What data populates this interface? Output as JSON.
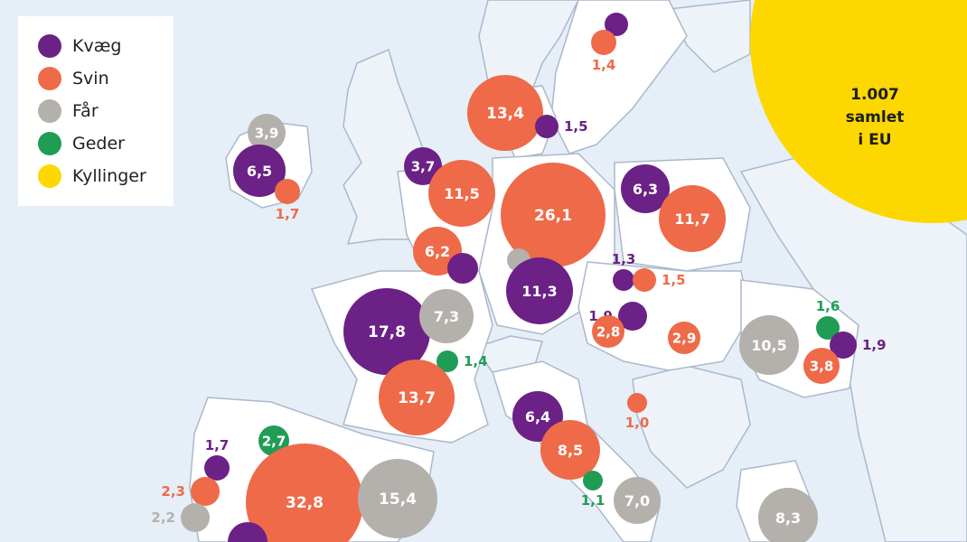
{
  "legend": {
    "items": [
      {
        "label": "Kvæg",
        "color": "#6b2185"
      },
      {
        "label": "Svin",
        "color": "#ee6a48"
      },
      {
        "label": "Får",
        "color": "#b4b0ab"
      },
      {
        "label": "Geder",
        "color": "#1f9d55"
      },
      {
        "label": "Kyllinger",
        "color": "#fdd700"
      }
    ]
  },
  "eu_total": {
    "lines": [
      "1.007",
      "samlet",
      "i EU"
    ],
    "color": "#fdd700"
  },
  "bubbles": [
    {
      "id": "sweden-kvaeg",
      "type": "kvaeg",
      "value": "",
      "label_pos": "none"
    },
    {
      "id": "sweden-svin",
      "type": "svin",
      "value": "1,4",
      "label_pos": "below"
    },
    {
      "id": "denmark-svin",
      "type": "svin",
      "value": "13,4",
      "label_pos": "inside"
    },
    {
      "id": "denmark-kvaeg",
      "type": "kvaeg",
      "value": "1,5",
      "label_pos": "right"
    },
    {
      "id": "ireland-faar",
      "type": "faar",
      "value": "3,9",
      "label_pos": "inside"
    },
    {
      "id": "ireland-kvaeg",
      "type": "kvaeg",
      "value": "6,5",
      "label_pos": "inside"
    },
    {
      "id": "ireland-svin",
      "type": "svin",
      "value": "1,7",
      "label_pos": "below"
    },
    {
      "id": "netherlands-kvaeg",
      "type": "kvaeg",
      "value": "3,7",
      "label_pos": "inside"
    },
    {
      "id": "netherlands-svin",
      "type": "svin",
      "value": "11,5",
      "label_pos": "inside"
    },
    {
      "id": "germany-svin",
      "type": "svin",
      "value": "26,1",
      "label_pos": "inside"
    },
    {
      "id": "poland-kvaeg",
      "type": "kvaeg",
      "value": "6,3",
      "label_pos": "inside"
    },
    {
      "id": "poland-svin",
      "type": "svin",
      "value": "11,7",
      "label_pos": "inside"
    },
    {
      "id": "belgium-svin",
      "type": "svin",
      "value": "6,2",
      "label_pos": "inside"
    },
    {
      "id": "belgium-kvaeg",
      "type": "kvaeg",
      "value": "",
      "label_pos": "none"
    },
    {
      "id": "germany-faar",
      "type": "faar",
      "value": "",
      "label_pos": "none"
    },
    {
      "id": "germany-kvaeg",
      "type": "kvaeg",
      "value": "11,3",
      "label_pos": "inside"
    },
    {
      "id": "czech-kvaeg",
      "type": "kvaeg",
      "value": "1,3",
      "label_pos": "above"
    },
    {
      "id": "czech-svin",
      "type": "svin",
      "value": "1,5",
      "label_pos": "right"
    },
    {
      "id": "austria-kvaeg",
      "type": "kvaeg",
      "value": "1,9",
      "label_pos": "left"
    },
    {
      "id": "austria-svin",
      "type": "svin",
      "value": "2,8",
      "label_pos": "inside"
    },
    {
      "id": "hungary-svin",
      "type": "svin",
      "value": "2,9",
      "label_pos": "inside"
    },
    {
      "id": "france-kvaeg",
      "type": "kvaeg",
      "value": "17,8",
      "label_pos": "inside"
    },
    {
      "id": "france-faar",
      "type": "faar",
      "value": "7,3",
      "label_pos": "inside"
    },
    {
      "id": "france-geder",
      "type": "geder",
      "value": "1,4",
      "label_pos": "right"
    },
    {
      "id": "france-svin",
      "type": "svin",
      "value": "13,7",
      "label_pos": "inside"
    },
    {
      "id": "romania-geder",
      "type": "geder",
      "value": "1,6",
      "label_pos": "above"
    },
    {
      "id": "romania-faar",
      "type": "faar",
      "value": "10,5",
      "label_pos": "inside"
    },
    {
      "id": "romania-kvaeg",
      "type": "kvaeg",
      "value": "1,9",
      "label_pos": "right"
    },
    {
      "id": "romania-svin",
      "type": "svin",
      "value": "3,8",
      "label_pos": "inside"
    },
    {
      "id": "italy-kvaeg",
      "type": "kvaeg",
      "value": "6,4",
      "label_pos": "inside"
    },
    {
      "id": "croatia-svin",
      "type": "svin",
      "value": "1,0",
      "label_pos": "below"
    },
    {
      "id": "italy-svin",
      "type": "svin",
      "value": "8,5",
      "label_pos": "inside"
    },
    {
      "id": "italy-geder",
      "type": "geder",
      "value": "1,1",
      "label_pos": "below"
    },
    {
      "id": "italy-faar",
      "type": "faar",
      "value": "7,0",
      "label_pos": "inside"
    },
    {
      "id": "portugal-kvaeg",
      "type": "kvaeg",
      "value": "1,7",
      "label_pos": "above"
    },
    {
      "id": "portugal-svin",
      "type": "svin",
      "value": "2,3",
      "label_pos": "left"
    },
    {
      "id": "portugal-faar",
      "type": "faar",
      "value": "2,2",
      "label_pos": "left"
    },
    {
      "id": "spain-geder",
      "type": "geder",
      "value": "2,7",
      "label_pos": "inside"
    },
    {
      "id": "spain-svin",
      "type": "svin",
      "value": "32,8",
      "label_pos": "inside"
    },
    {
      "id": "spain-faar",
      "type": "faar",
      "value": "15,4",
      "label_pos": "inside"
    },
    {
      "id": "spain-kvaeg",
      "type": "kvaeg",
      "value": "",
      "label_pos": "none"
    },
    {
      "id": "greece-faar",
      "type": "faar",
      "value": "8,3",
      "label_pos": "inside"
    }
  ],
  "colors": {
    "sea": "#e6eef7",
    "land": "#ffffff",
    "nonmember_land": "#eef3f9",
    "border": "#aab9cc",
    "kvaeg": "#6b2185",
    "svin": "#ee6a48",
    "faar": "#b4b0ab",
    "geder": "#1f9d55",
    "kyllinger": "#fdd700"
  }
}
